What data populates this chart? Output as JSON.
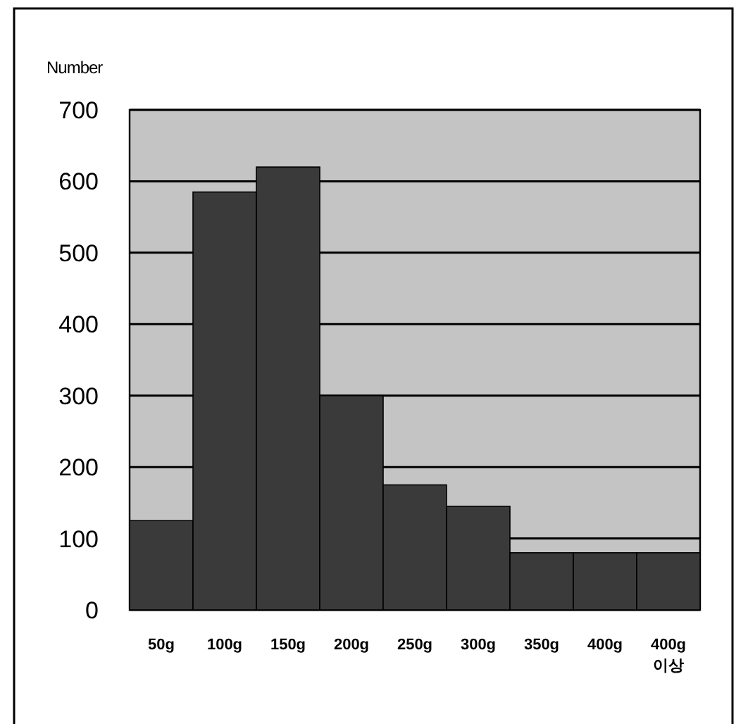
{
  "chart_data": {
    "type": "bar",
    "ylabel": "Number",
    "categories": [
      "50g",
      "100g",
      "150g",
      "200g",
      "250g",
      "300g",
      "350g",
      "400g",
      "400g 이상"
    ],
    "values": [
      125,
      585,
      620,
      300,
      175,
      145,
      80,
      80,
      80
    ],
    "color": "#3a3a3a",
    "ylim": [
      0,
      700
    ],
    "yticks": [
      0,
      100,
      200,
      300,
      400,
      500,
      600,
      700
    ],
    "grid": "y"
  }
}
